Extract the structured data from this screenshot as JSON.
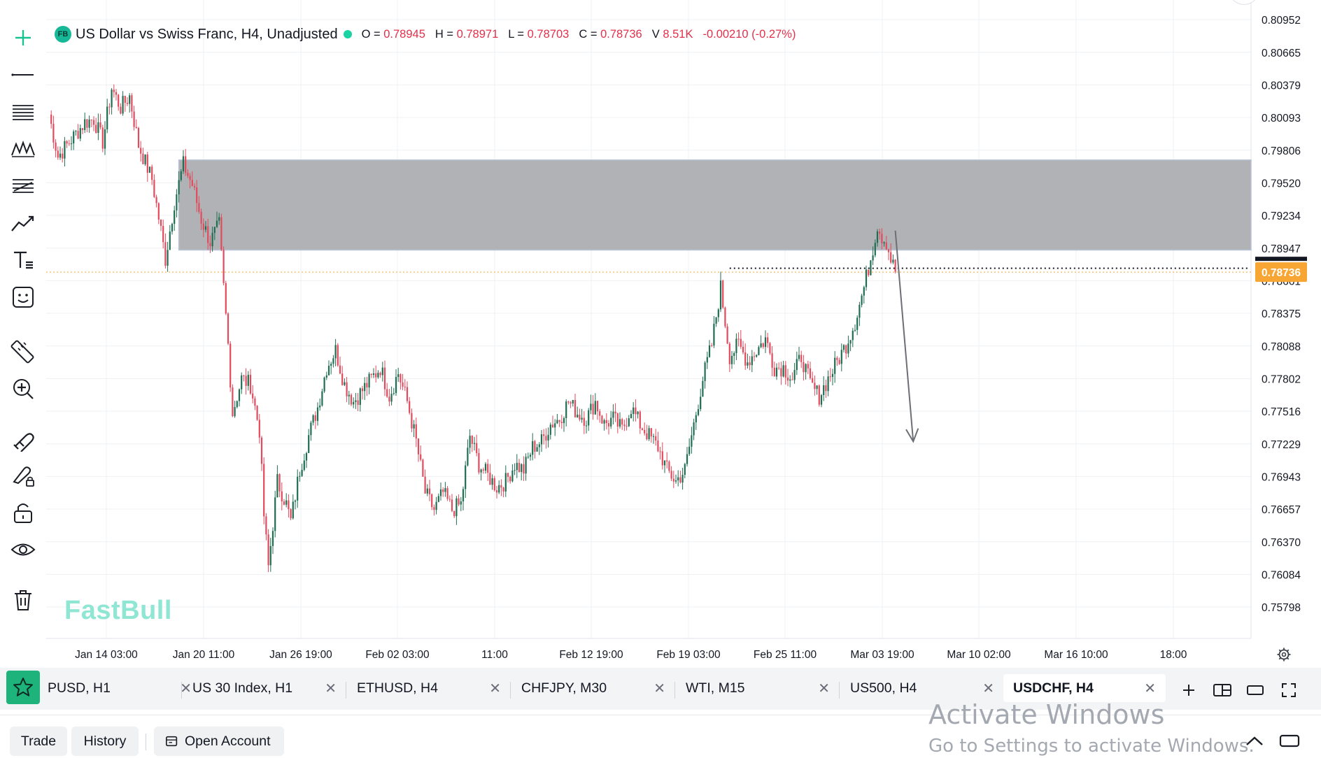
{
  "header": {
    "badge": "FB",
    "symbol_title": "US Dollar vs Swiss Franc, H4, Unadjusted",
    "ohlc": [
      {
        "label": "O =",
        "value": "0.78945"
      },
      {
        "label": "H =",
        "value": "0.78971"
      },
      {
        "label": "L =",
        "value": "0.78703"
      },
      {
        "label": "C =",
        "value": "0.78736"
      },
      {
        "label": "V",
        "value": "8.51K"
      }
    ],
    "change": "-0.00210 (-0.27%)"
  },
  "toolbar": {
    "tools": [
      "crosshair-icon",
      "horizontal-line-icon",
      "fib-levels-icon",
      "pattern-icon",
      "gann-icon",
      "trend-line-icon",
      "text-tool-icon",
      "emoji-icon",
      "ruler-icon",
      "zoom-in-icon",
      "magnet-icon",
      "brush-lock-icon",
      "lock-icon",
      "eye-icon",
      "trash-icon"
    ]
  },
  "chart_data": {
    "type": "candlestick",
    "symbol": "USDCHF",
    "timeframe": "H4",
    "y_ticks": [
      "0.80952",
      "0.80665",
      "0.80379",
      "0.80093",
      "0.79806",
      "0.79520",
      "0.79234",
      "0.78947",
      "0.78661",
      "0.78375",
      "0.78088",
      "0.77802",
      "0.77516",
      "0.77229",
      "0.76943",
      "0.76657",
      "0.76370",
      "0.76084",
      "0.75798"
    ],
    "ylim": [
      0.7565,
      0.8102
    ],
    "x_ticks": [
      "Jan 14 03:00",
      "Jan 20 11:00",
      "Jan 26 19:00",
      "Feb 02 03:00",
      "11:00",
      "Feb 12 19:00",
      "Feb 19 03:00",
      "Feb 25 11:00",
      "Mar 03 19:00",
      "Mar 10 02:00",
      "Mar 16 10:00",
      "18:00"
    ],
    "current_price": "0.78736",
    "price_path": [
      [
        0,
        0.8012
      ],
      [
        4,
        0.7975
      ],
      [
        10,
        0.799
      ],
      [
        16,
        0.8005
      ],
      [
        20,
        0.8008
      ],
      [
        24,
        0.7988
      ],
      [
        28,
        0.8035
      ],
      [
        32,
        0.8018
      ],
      [
        36,
        0.8028
      ],
      [
        40,
        0.7985
      ],
      [
        46,
        0.7955
      ],
      [
        50,
        0.791
      ],
      [
        52,
        0.7885
      ],
      [
        56,
        0.7935
      ],
      [
        60,
        0.7968
      ],
      [
        64,
        0.795
      ],
      [
        68,
        0.792
      ],
      [
        72,
        0.79
      ],
      [
        76,
        0.7915
      ],
      [
        78,
        0.786
      ],
      [
        80,
        0.781
      ],
      [
        82,
        0.775
      ],
      [
        86,
        0.778
      ],
      [
        90,
        0.7775
      ],
      [
        94,
        0.7735
      ],
      [
        96,
        0.766
      ],
      [
        98,
        0.7615
      ],
      [
        102,
        0.769
      ],
      [
        106,
        0.767
      ],
      [
        108,
        0.7655
      ],
      [
        112,
        0.77
      ],
      [
        116,
        0.773
      ],
      [
        120,
        0.7755
      ],
      [
        124,
        0.779
      ],
      [
        128,
        0.7805
      ],
      [
        132,
        0.7775
      ],
      [
        136,
        0.776
      ],
      [
        140,
        0.777
      ],
      [
        144,
        0.778
      ],
      [
        148,
        0.779
      ],
      [
        152,
        0.7765
      ],
      [
        156,
        0.7785
      ],
      [
        160,
        0.776
      ],
      [
        164,
        0.7725
      ],
      [
        168,
        0.768
      ],
      [
        172,
        0.7665
      ],
      [
        176,
        0.768
      ],
      [
        180,
        0.7665
      ],
      [
        184,
        0.767
      ],
      [
        188,
        0.773
      ],
      [
        192,
        0.7705
      ],
      [
        196,
        0.7695
      ],
      [
        200,
        0.7685
      ],
      [
        204,
        0.769
      ],
      [
        208,
        0.7705
      ],
      [
        212,
        0.77
      ],
      [
        216,
        0.772
      ],
      [
        220,
        0.7725
      ],
      [
        224,
        0.774
      ],
      [
        228,
        0.7745
      ],
      [
        232,
        0.776
      ],
      [
        236,
        0.775
      ],
      [
        240,
        0.7745
      ],
      [
        244,
        0.776
      ],
      [
        248,
        0.774
      ],
      [
        252,
        0.7745
      ],
      [
        256,
        0.7735
      ],
      [
        260,
        0.7755
      ],
      [
        264,
        0.774
      ],
      [
        268,
        0.773
      ],
      [
        272,
        0.772
      ],
      [
        276,
        0.77
      ],
      [
        280,
        0.769
      ],
      [
        284,
        0.77
      ],
      [
        288,
        0.774
      ],
      [
        292,
        0.778
      ],
      [
        296,
        0.781
      ],
      [
        300,
        0.786
      ],
      [
        304,
        0.78
      ],
      [
        308,
        0.781
      ],
      [
        312,
        0.7795
      ],
      [
        316,
        0.7805
      ],
      [
        320,
        0.7815
      ],
      [
        324,
        0.779
      ],
      [
        328,
        0.779
      ],
      [
        332,
        0.778
      ],
      [
        336,
        0.78
      ],
      [
        340,
        0.7775
      ],
      [
        344,
        0.7765
      ],
      [
        348,
        0.778
      ],
      [
        352,
        0.7795
      ],
      [
        356,
        0.781
      ],
      [
        360,
        0.783
      ],
      [
        364,
        0.786
      ],
      [
        368,
        0.7895
      ],
      [
        370,
        0.7915
      ],
      [
        372,
        0.7905
      ],
      [
        374,
        0.79
      ],
      [
        376,
        0.7885
      ],
      [
        378,
        0.7874
      ]
    ],
    "supply_zone": {
      "x_from": 58,
      "y_low": 0.7893,
      "y_high": 0.7972
    },
    "dotted_level": {
      "x_from": 304,
      "y": 0.7877
    },
    "projection_arrow": {
      "from": [
        378,
        0.791
      ],
      "to": [
        386,
        0.7725
      ]
    }
  },
  "watermark": "FastBull",
  "tabs": [
    {
      "label": "PUSD, H1",
      "active": false
    },
    {
      "label": "US 30 Index, H1",
      "active": false
    },
    {
      "label": "ETHUSD, H4",
      "active": false
    },
    {
      "label": "CHFJPY, M30",
      "active": false
    },
    {
      "label": "WTI, M15",
      "active": false
    },
    {
      "label": "US500, H4",
      "active": false
    },
    {
      "label": "USDCHF, H4",
      "active": true
    }
  ],
  "tab_close_glyph": "✕",
  "tab_actions": [
    "add-tab-icon",
    "layout-icon",
    "window-icon",
    "fullscreen-icon"
  ],
  "bottom": {
    "trade": "Trade",
    "history": "History",
    "open_account": "Open Account"
  },
  "windows_watermark": {
    "line1": "Activate Windows",
    "line2": "Go to Settings to activate Windows."
  },
  "colors": {
    "up": "#1f6e52",
    "down": "#e24a5d",
    "zone": "#a9aaad",
    "price_tag": "#f7a533",
    "accent": "#19d3a2"
  }
}
